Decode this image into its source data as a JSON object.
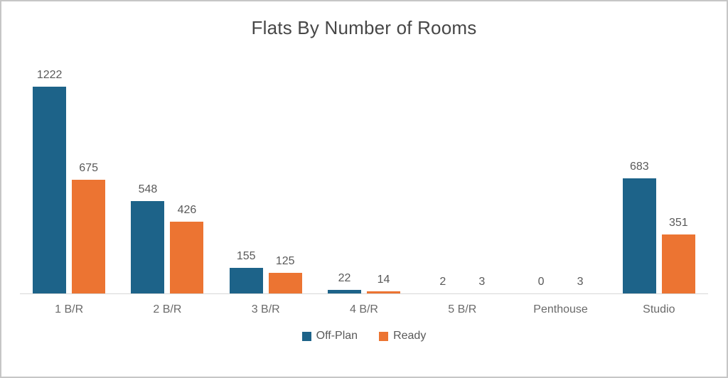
{
  "title": "Flats By Number of Rooms",
  "chart_data": {
    "type": "bar",
    "title": "Flats By Number of Rooms",
    "xlabel": "",
    "ylabel": "",
    "categories": [
      "1 B/R",
      "2 B/R",
      "3 B/R",
      "4 B/R",
      "5 B/R",
      "Penthouse",
      "Studio"
    ],
    "series": [
      {
        "name": "Off-Plan",
        "color": "#1d6389",
        "values": [
          1222,
          548,
          155,
          22,
          2,
          0,
          683
        ]
      },
      {
        "name": "Ready",
        "color": "#ec7432",
        "values": [
          675,
          426,
          125,
          14,
          3,
          3,
          351
        ]
      }
    ],
    "ylim": [
      0,
      1300
    ],
    "grid": false,
    "axis_line_color": "#d8d8d8",
    "data_labels": true,
    "data_label_color": "#595959",
    "legend_position": "bottom"
  }
}
